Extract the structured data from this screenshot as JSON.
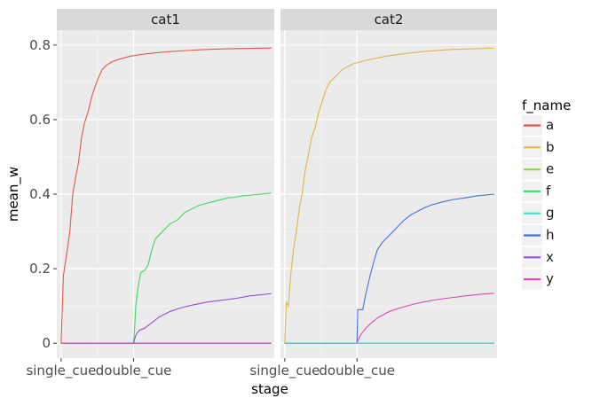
{
  "chart_data": {
    "type": "line",
    "xlabel": "stage",
    "ylabel": "mean_w",
    "ylim": [
      -0.04,
      0.84
    ],
    "yticks": [
      0,
      0.2,
      0.4,
      0.6,
      0.8
    ],
    "ytick_labels": [
      "0",
      "0.2",
      "0.4",
      "0.6",
      "0.8"
    ],
    "x_range": [
      -6,
      294
    ],
    "x_ticks": [
      {
        "label": "single_cue",
        "value": 0
      },
      {
        "label": "double_cue",
        "value": 100
      }
    ],
    "grid": true,
    "legend": {
      "title": "f_name",
      "placement": "right",
      "items": [
        {
          "label": "a",
          "color": "#e0584a"
        },
        {
          "label": "b",
          "color": "#e0b64a"
        },
        {
          "label": "e",
          "color": "#8fdc4a"
        },
        {
          "label": "f",
          "color": "#4adc6e"
        },
        {
          "label": "g",
          "color": "#4adccd"
        },
        {
          "label": "h",
          "color": "#4a6fdc"
        },
        {
          "label": "x",
          "color": "#9a4adc"
        },
        {
          "label": "y",
          "color": "#dc4ab6"
        }
      ]
    },
    "panels": [
      {
        "title": "cat1",
        "series": [
          {
            "name": "a",
            "color": "#e0584a",
            "points": [
              [
                0,
                0
              ],
              [
                3,
                0.18
              ],
              [
                8,
                0.245
              ],
              [
                12,
                0.3
              ],
              [
                16,
                0.4
              ],
              [
                20,
                0.445
              ],
              [
                24,
                0.485
              ],
              [
                28,
                0.55
              ],
              [
                32,
                0.59
              ],
              [
                37,
                0.62
              ],
              [
                42,
                0.66
              ],
              [
                47,
                0.69
              ],
              [
                52,
                0.715
              ],
              [
                57,
                0.735
              ],
              [
                62,
                0.745
              ],
              [
                70,
                0.755
              ],
              [
                80,
                0.762
              ],
              [
                95,
                0.77
              ],
              [
                115,
                0.776
              ],
              [
                140,
                0.781
              ],
              [
                170,
                0.785
              ],
              [
                200,
                0.788
              ],
              [
                230,
                0.79
              ],
              [
                260,
                0.791
              ],
              [
                290,
                0.792
              ]
            ]
          },
          {
            "name": "e",
            "color": "#8fdc4a",
            "points": [
              [
                0,
                0
              ],
              [
                100,
                0
              ],
              [
                101,
                0.03
              ],
              [
                103,
                0.1
              ],
              [
                106,
                0.15
              ],
              [
                110,
                0.19
              ],
              [
                115,
                0.195
              ],
              [
                120,
                0.21
              ],
              [
                125,
                0.25
              ],
              [
                130,
                0.28
              ],
              [
                140,
                0.3
              ],
              [
                150,
                0.32
              ],
              [
                160,
                0.33
              ],
              [
                170,
                0.35
              ],
              [
                180,
                0.36
              ],
              [
                190,
                0.37
              ],
              [
                200,
                0.375
              ],
              [
                210,
                0.38
              ],
              [
                220,
                0.385
              ],
              [
                230,
                0.39
              ],
              [
                240,
                0.392
              ],
              [
                250,
                0.395
              ],
              [
                260,
                0.397
              ],
              [
                275,
                0.4
              ],
              [
                290,
                0.403
              ]
            ]
          },
          {
            "name": "f",
            "color": "#4adc6e",
            "points": [
              [
                0,
                0
              ],
              [
                100,
                0
              ],
              [
                101,
                0.03
              ],
              [
                103,
                0.1
              ],
              [
                106,
                0.15
              ],
              [
                110,
                0.19
              ],
              [
                115,
                0.195
              ],
              [
                120,
                0.21
              ],
              [
                125,
                0.25
              ],
              [
                130,
                0.28
              ],
              [
                140,
                0.3
              ],
              [
                150,
                0.32
              ],
              [
                160,
                0.33
              ],
              [
                170,
                0.35
              ],
              [
                180,
                0.36
              ],
              [
                190,
                0.37
              ],
              [
                200,
                0.375
              ],
              [
                210,
                0.38
              ],
              [
                220,
                0.385
              ],
              [
                230,
                0.39
              ],
              [
                240,
                0.392
              ],
              [
                250,
                0.395
              ],
              [
                260,
                0.397
              ],
              [
                275,
                0.4
              ],
              [
                290,
                0.403
              ]
            ]
          },
          {
            "name": "x",
            "color": "#9a4adc",
            "points": [
              [
                0,
                0
              ],
              [
                100,
                0
              ],
              [
                101,
                0.01
              ],
              [
                104,
                0.025
              ],
              [
                108,
                0.035
              ],
              [
                115,
                0.04
              ],
              [
                125,
                0.055
              ],
              [
                135,
                0.07
              ],
              [
                150,
                0.085
              ],
              [
                165,
                0.095
              ],
              [
                180,
                0.102
              ],
              [
                200,
                0.11
              ],
              [
                220,
                0.115
              ],
              [
                240,
                0.12
              ],
              [
                260,
                0.127
              ],
              [
                275,
                0.13
              ],
              [
                290,
                0.133
              ]
            ]
          },
          {
            "name": "g",
            "color": "#4adccd",
            "points": [
              [
                0,
                0
              ],
              [
                290,
                0
              ]
            ]
          },
          {
            "name": "h",
            "color": "#4a6fdc",
            "points": [
              [
                0,
                0
              ],
              [
                290,
                0
              ]
            ]
          },
          {
            "name": "y",
            "color": "#dc4ab6",
            "points": [
              [
                0,
                0
              ],
              [
                290,
                0
              ]
            ]
          }
        ]
      },
      {
        "title": "cat2",
        "series": [
          {
            "name": "b",
            "color": "#e0b64a",
            "points": [
              [
                0,
                0
              ],
              [
                2,
                0.11
              ],
              [
                5,
                0.1
              ],
              [
                8,
                0.18
              ],
              [
                12,
                0.25
              ],
              [
                16,
                0.3
              ],
              [
                20,
                0.36
              ],
              [
                24,
                0.4
              ],
              [
                28,
                0.46
              ],
              [
                32,
                0.5
              ],
              [
                37,
                0.55
              ],
              [
                42,
                0.58
              ],
              [
                47,
                0.62
              ],
              [
                52,
                0.65
              ],
              [
                57,
                0.68
              ],
              [
                62,
                0.7
              ],
              [
                70,
                0.715
              ],
              [
                80,
                0.735
              ],
              [
                95,
                0.75
              ],
              [
                115,
                0.76
              ],
              [
                140,
                0.77
              ],
              [
                170,
                0.778
              ],
              [
                200,
                0.784
              ],
              [
                230,
                0.788
              ],
              [
                260,
                0.79
              ],
              [
                290,
                0.792
              ]
            ]
          },
          {
            "name": "h",
            "color": "#4a6fdc",
            "points": [
              [
                0,
                0
              ],
              [
                100,
                0
              ],
              [
                101,
                0.09
              ],
              [
                108,
                0.09
              ],
              [
                112,
                0.13
              ],
              [
                118,
                0.18
              ],
              [
                122,
                0.21
              ],
              [
                128,
                0.25
              ],
              [
                135,
                0.27
              ],
              [
                145,
                0.29
              ],
              [
                155,
                0.31
              ],
              [
                165,
                0.33
              ],
              [
                175,
                0.345
              ],
              [
                185,
                0.355
              ],
              [
                195,
                0.365
              ],
              [
                205,
                0.372
              ],
              [
                220,
                0.38
              ],
              [
                235,
                0.386
              ],
              [
                250,
                0.39
              ],
              [
                265,
                0.395
              ],
              [
                280,
                0.398
              ],
              [
                290,
                0.4
              ]
            ]
          },
          {
            "name": "y",
            "color": "#dc4ab6",
            "points": [
              [
                0,
                0
              ],
              [
                100,
                0
              ],
              [
                102,
                0.01
              ],
              [
                106,
                0.025
              ],
              [
                112,
                0.04
              ],
              [
                120,
                0.055
              ],
              [
                130,
                0.07
              ],
              [
                145,
                0.085
              ],
              [
                160,
                0.095
              ],
              [
                175,
                0.103
              ],
              [
                190,
                0.11
              ],
              [
                210,
                0.117
              ],
              [
                230,
                0.122
              ],
              [
                250,
                0.127
              ],
              [
                270,
                0.131
              ],
              [
                290,
                0.134
              ]
            ]
          },
          {
            "name": "x",
            "color": "#9a4adc",
            "points": [
              [
                0,
                0
              ],
              [
                290,
                0
              ]
            ]
          },
          {
            "name": "g",
            "color": "#4adccd",
            "points": [
              [
                0,
                0
              ],
              [
                290,
                0
              ]
            ]
          }
        ]
      }
    ]
  }
}
